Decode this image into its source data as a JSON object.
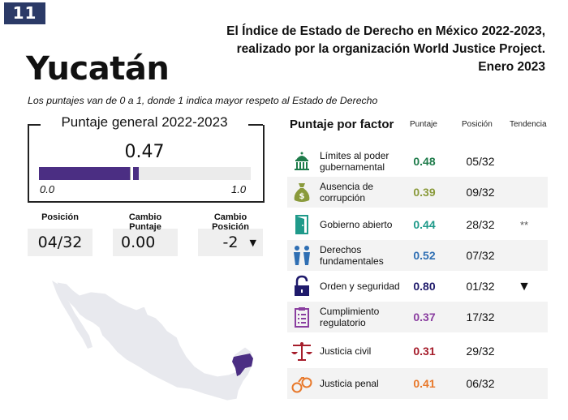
{
  "page_number": "11",
  "report": {
    "line1": "El Índice de Estado de Derecho en México 2022-2023,",
    "line2": "realizado por la organización World Justice Project.",
    "line3": "Enero 2023"
  },
  "state_name": "Yucatán",
  "subtitle": "Los puntajes van de 0 a 1, donde 1 indica mayor respeto al Estado de Derecho",
  "general": {
    "title": "Puntaje general 2022-2023",
    "score": "0.47",
    "score_value": 0.47,
    "previous_marker_value": 0.43,
    "scale_min": "0.0",
    "scale_max": "1.0",
    "colors": {
      "fill": "#4b2e83",
      "track": "#ebebeb"
    }
  },
  "stats": [
    {
      "label": "Posición",
      "value": "04/32"
    },
    {
      "label": "Cambio Puntaje",
      "value": "0.00"
    },
    {
      "label": "Cambio Posición",
      "value": "-2",
      "trend_icon": "▼"
    }
  ],
  "map": {
    "highlighted_state": "Yucatán",
    "highlight_color": "#4b2e83",
    "base_color": "#e8e9ee"
  },
  "factors": {
    "title": "Puntaje por factor",
    "headers": {
      "score": "Puntaje",
      "position": "Posición",
      "trend": "Tendencia"
    },
    "rows": [
      {
        "icon": "capitol-icon",
        "label": "Límites al poder gubernamental",
        "score": "0.48",
        "position": "05/32",
        "trend": "",
        "color": "#1e7b4a"
      },
      {
        "icon": "money-bag-icon",
        "label": "Ausencia de corrupción",
        "score": "0.39",
        "position": "09/32",
        "trend": "",
        "color": "#8a9a3b"
      },
      {
        "icon": "door-icon",
        "label": "Gobierno abierto",
        "score": "0.44",
        "position": "28/32",
        "trend": "**",
        "color": "#1f9a8a"
      },
      {
        "icon": "people-icon",
        "label": "Derechos fundamentales",
        "score": "0.52",
        "position": "07/32",
        "trend": "",
        "color": "#2f6fb3"
      },
      {
        "icon": "padlock-icon",
        "label": "Orden y seguridad",
        "score": "0.80",
        "position": "01/32",
        "trend": "▼",
        "color": "#1f1a6b"
      },
      {
        "icon": "clipboard-icon",
        "label": "Cumplimiento regulatorio",
        "score": "0.37",
        "position": "17/32",
        "trend": "",
        "color": "#8a3ea0"
      },
      {
        "icon": "scales-icon",
        "label": "Justicia civil",
        "score": "0.31",
        "position": "29/32",
        "trend": "",
        "color": "#a51c2a"
      },
      {
        "icon": "handcuffs-icon",
        "label": "Justicia penal",
        "score": "0.41",
        "position": "06/32",
        "trend": "",
        "color": "#e8782a"
      }
    ]
  }
}
